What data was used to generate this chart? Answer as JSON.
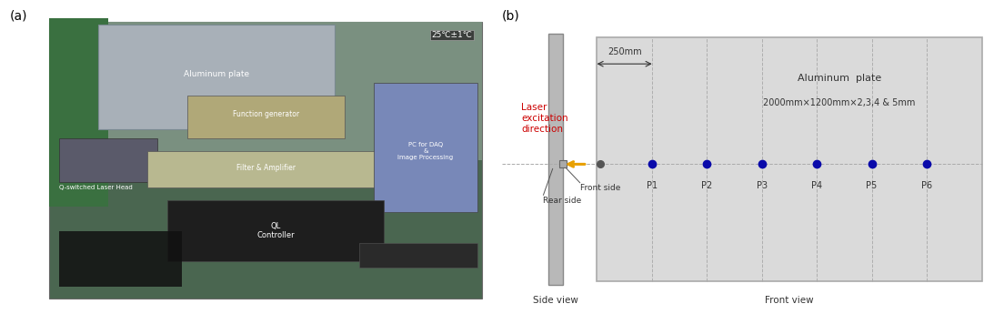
{
  "label_a": "(a)",
  "label_b": "(b)",
  "plate_label": "Aluminum  plate",
  "plate_spec": "2000mm×1200mm×2,3,4 & 5mm",
  "distance_label": "250mm",
  "laser_label": "Laser\nexcitation\ndirection",
  "front_side_label": "Front side",
  "rear_side_label": "Rear side",
  "side_view_label": "Side view",
  "front_view_label": "Front view",
  "points": [
    "P1",
    "P2",
    "P3",
    "P4",
    "P5",
    "P6"
  ],
  "point_color": "#0a0aaa",
  "sensor_color": "#555555",
  "arrow_color": "#E8A000",
  "laser_text_color": "#CC0000",
  "plate_bg": "#DADADA",
  "plate_border": "#AAAAAA",
  "side_bar_color": "#B8B8B8",
  "dashed_line_color": "#AAAAAA",
  "photo_bg_color": "#5a7a60",
  "photo_border_color": "#888888",
  "photo_labels": {
    "aluminum_plate": "Aluminum plate",
    "temp": "25℃±1℃",
    "laser_head": "Q-switched Laser Head",
    "function_gen": "Function generator",
    "filter_amp": "Filter & Amplifier",
    "pc_daq": "PC for DAQ\n&\nImage Processing",
    "ql_controller": "QL\nController"
  }
}
